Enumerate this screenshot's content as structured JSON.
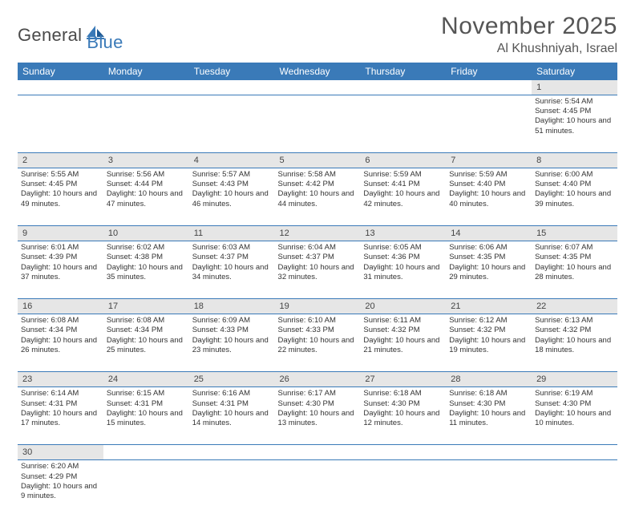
{
  "brand": {
    "part1": "General",
    "part2": "Blue"
  },
  "title": "November 2025",
  "location": "Al Khushniyah, Israel",
  "colors": {
    "header_bg": "#3a7ab8",
    "daynum_bg": "#e6e6e6",
    "text": "#333333",
    "border": "#3a7ab8",
    "background": "#ffffff"
  },
  "day_headers": [
    "Sunday",
    "Monday",
    "Tuesday",
    "Wednesday",
    "Thursday",
    "Friday",
    "Saturday"
  ],
  "weeks": [
    {
      "nums": [
        "",
        "",
        "",
        "",
        "",
        "",
        "1"
      ],
      "cells": [
        null,
        null,
        null,
        null,
        null,
        null,
        {
          "sunrise": "Sunrise: 5:54 AM",
          "sunset": "Sunset: 4:45 PM",
          "daylight": "Daylight: 10 hours and 51 minutes."
        }
      ]
    },
    {
      "nums": [
        "2",
        "3",
        "4",
        "5",
        "6",
        "7",
        "8"
      ],
      "cells": [
        {
          "sunrise": "Sunrise: 5:55 AM",
          "sunset": "Sunset: 4:45 PM",
          "daylight": "Daylight: 10 hours and 49 minutes."
        },
        {
          "sunrise": "Sunrise: 5:56 AM",
          "sunset": "Sunset: 4:44 PM",
          "daylight": "Daylight: 10 hours and 47 minutes."
        },
        {
          "sunrise": "Sunrise: 5:57 AM",
          "sunset": "Sunset: 4:43 PM",
          "daylight": "Daylight: 10 hours and 46 minutes."
        },
        {
          "sunrise": "Sunrise: 5:58 AM",
          "sunset": "Sunset: 4:42 PM",
          "daylight": "Daylight: 10 hours and 44 minutes."
        },
        {
          "sunrise": "Sunrise: 5:59 AM",
          "sunset": "Sunset: 4:41 PM",
          "daylight": "Daylight: 10 hours and 42 minutes."
        },
        {
          "sunrise": "Sunrise: 5:59 AM",
          "sunset": "Sunset: 4:40 PM",
          "daylight": "Daylight: 10 hours and 40 minutes."
        },
        {
          "sunrise": "Sunrise: 6:00 AM",
          "sunset": "Sunset: 4:40 PM",
          "daylight": "Daylight: 10 hours and 39 minutes."
        }
      ]
    },
    {
      "nums": [
        "9",
        "10",
        "11",
        "12",
        "13",
        "14",
        "15"
      ],
      "cells": [
        {
          "sunrise": "Sunrise: 6:01 AM",
          "sunset": "Sunset: 4:39 PM",
          "daylight": "Daylight: 10 hours and 37 minutes."
        },
        {
          "sunrise": "Sunrise: 6:02 AM",
          "sunset": "Sunset: 4:38 PM",
          "daylight": "Daylight: 10 hours and 35 minutes."
        },
        {
          "sunrise": "Sunrise: 6:03 AM",
          "sunset": "Sunset: 4:37 PM",
          "daylight": "Daylight: 10 hours and 34 minutes."
        },
        {
          "sunrise": "Sunrise: 6:04 AM",
          "sunset": "Sunset: 4:37 PM",
          "daylight": "Daylight: 10 hours and 32 minutes."
        },
        {
          "sunrise": "Sunrise: 6:05 AM",
          "sunset": "Sunset: 4:36 PM",
          "daylight": "Daylight: 10 hours and 31 minutes."
        },
        {
          "sunrise": "Sunrise: 6:06 AM",
          "sunset": "Sunset: 4:35 PM",
          "daylight": "Daylight: 10 hours and 29 minutes."
        },
        {
          "sunrise": "Sunrise: 6:07 AM",
          "sunset": "Sunset: 4:35 PM",
          "daylight": "Daylight: 10 hours and 28 minutes."
        }
      ]
    },
    {
      "nums": [
        "16",
        "17",
        "18",
        "19",
        "20",
        "21",
        "22"
      ],
      "cells": [
        {
          "sunrise": "Sunrise: 6:08 AM",
          "sunset": "Sunset: 4:34 PM",
          "daylight": "Daylight: 10 hours and 26 minutes."
        },
        {
          "sunrise": "Sunrise: 6:08 AM",
          "sunset": "Sunset: 4:34 PM",
          "daylight": "Daylight: 10 hours and 25 minutes."
        },
        {
          "sunrise": "Sunrise: 6:09 AM",
          "sunset": "Sunset: 4:33 PM",
          "daylight": "Daylight: 10 hours and 23 minutes."
        },
        {
          "sunrise": "Sunrise: 6:10 AM",
          "sunset": "Sunset: 4:33 PM",
          "daylight": "Daylight: 10 hours and 22 minutes."
        },
        {
          "sunrise": "Sunrise: 6:11 AM",
          "sunset": "Sunset: 4:32 PM",
          "daylight": "Daylight: 10 hours and 21 minutes."
        },
        {
          "sunrise": "Sunrise: 6:12 AM",
          "sunset": "Sunset: 4:32 PM",
          "daylight": "Daylight: 10 hours and 19 minutes."
        },
        {
          "sunrise": "Sunrise: 6:13 AM",
          "sunset": "Sunset: 4:32 PM",
          "daylight": "Daylight: 10 hours and 18 minutes."
        }
      ]
    },
    {
      "nums": [
        "23",
        "24",
        "25",
        "26",
        "27",
        "28",
        "29"
      ],
      "cells": [
        {
          "sunrise": "Sunrise: 6:14 AM",
          "sunset": "Sunset: 4:31 PM",
          "daylight": "Daylight: 10 hours and 17 minutes."
        },
        {
          "sunrise": "Sunrise: 6:15 AM",
          "sunset": "Sunset: 4:31 PM",
          "daylight": "Daylight: 10 hours and 15 minutes."
        },
        {
          "sunrise": "Sunrise: 6:16 AM",
          "sunset": "Sunset: 4:31 PM",
          "daylight": "Daylight: 10 hours and 14 minutes."
        },
        {
          "sunrise": "Sunrise: 6:17 AM",
          "sunset": "Sunset: 4:30 PM",
          "daylight": "Daylight: 10 hours and 13 minutes."
        },
        {
          "sunrise": "Sunrise: 6:18 AM",
          "sunset": "Sunset: 4:30 PM",
          "daylight": "Daylight: 10 hours and 12 minutes."
        },
        {
          "sunrise": "Sunrise: 6:18 AM",
          "sunset": "Sunset: 4:30 PM",
          "daylight": "Daylight: 10 hours and 11 minutes."
        },
        {
          "sunrise": "Sunrise: 6:19 AM",
          "sunset": "Sunset: 4:30 PM",
          "daylight": "Daylight: 10 hours and 10 minutes."
        }
      ]
    },
    {
      "nums": [
        "30",
        "",
        "",
        "",
        "",
        "",
        ""
      ],
      "cells": [
        {
          "sunrise": "Sunrise: 6:20 AM",
          "sunset": "Sunset: 4:29 PM",
          "daylight": "Daylight: 10 hours and 9 minutes."
        },
        null,
        null,
        null,
        null,
        null,
        null
      ]
    }
  ]
}
